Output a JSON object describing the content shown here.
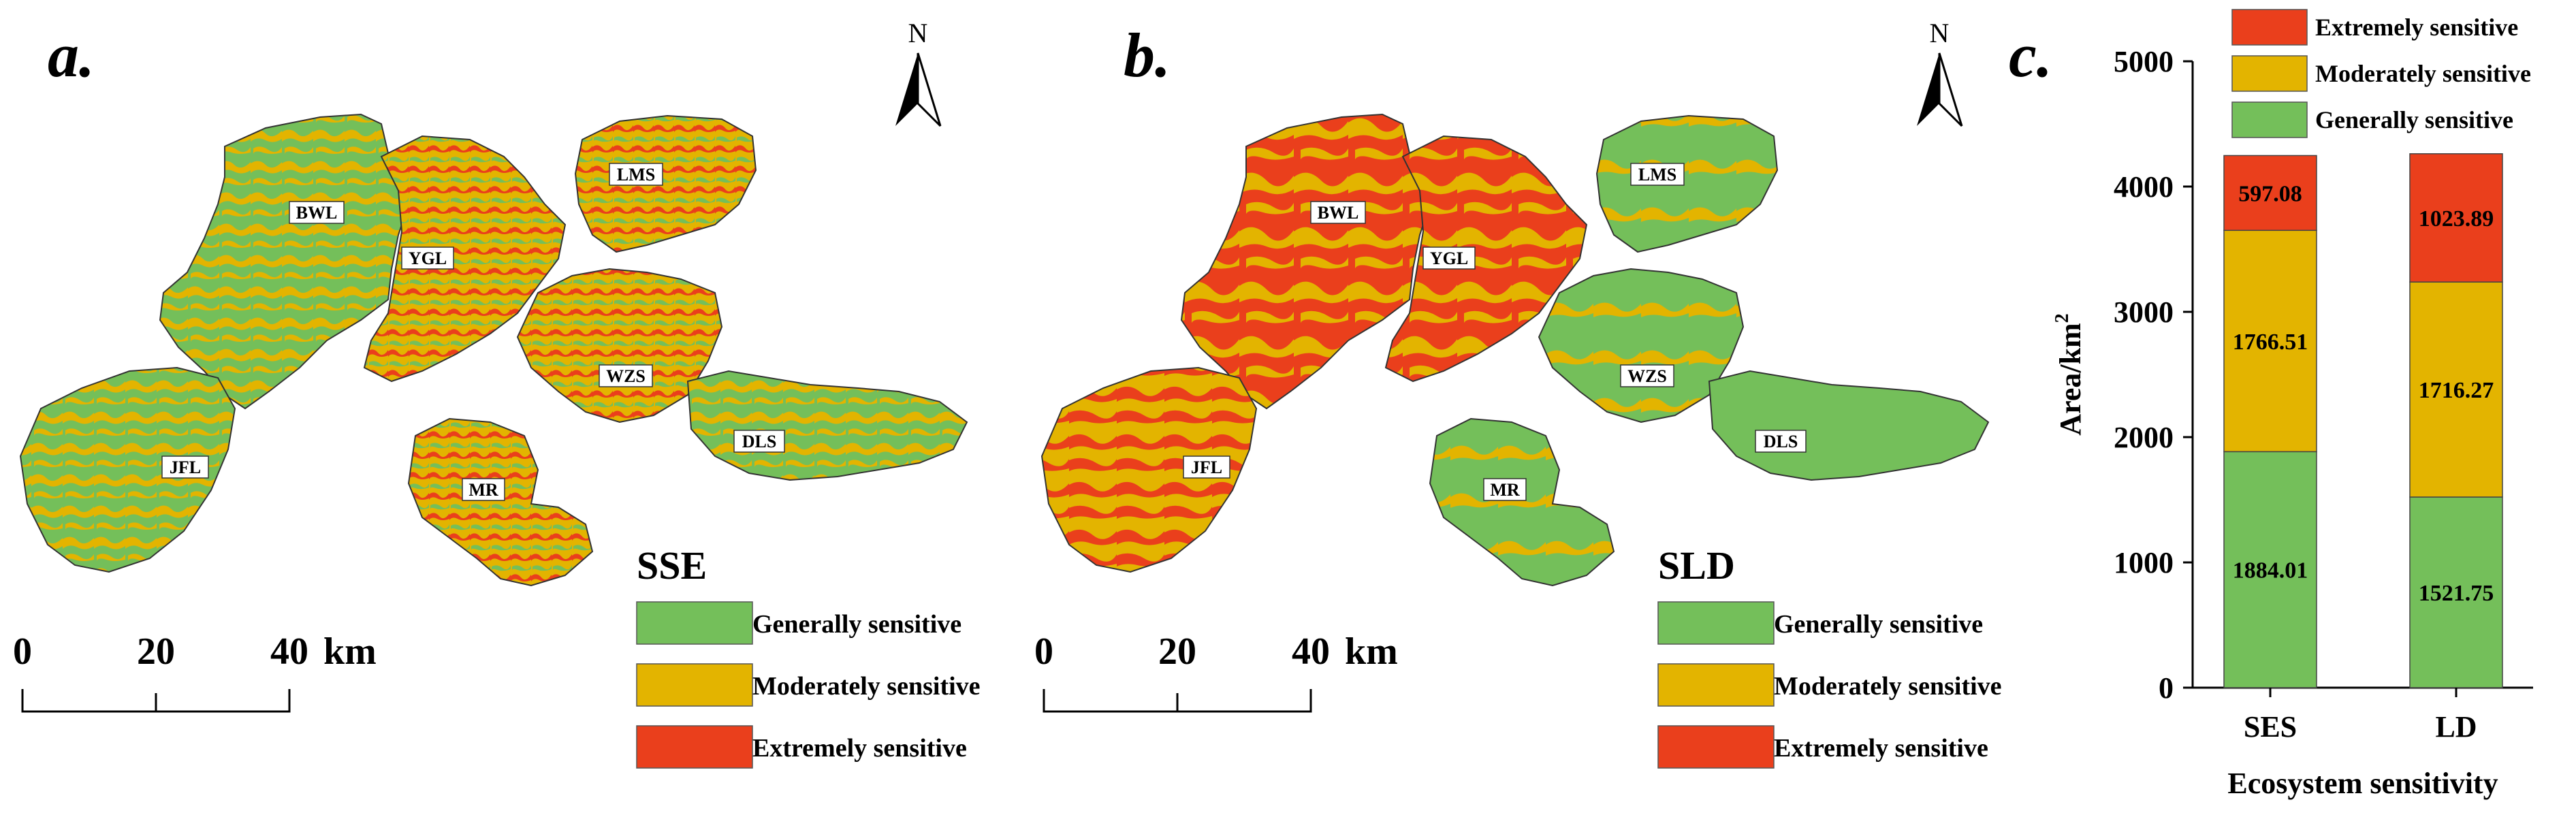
{
  "colors": {
    "generally": "#74bf5a",
    "moderately": "#e3b400",
    "extremely": "#ea3f1c",
    "text": "#000000",
    "label_box": "#ffffff"
  },
  "north_arrow_label": "N",
  "scale_bar": {
    "ticks": [
      "0",
      "20",
      "40"
    ],
    "unit": "km"
  },
  "sensitivity_classes": [
    "Generally sensitive",
    "Moderately sensitive",
    "Extremely sensitive"
  ],
  "regions": [
    "BWL",
    "YGL",
    "LMS",
    "WZS",
    "DLS",
    "JFL",
    "MR"
  ],
  "panels": [
    {
      "panel_label": "a.",
      "map_title": "SSE"
    },
    {
      "panel_label": "b.",
      "map_title": "SLD"
    }
  ],
  "chart_data": {
    "panel_label": "c.",
    "type": "bar",
    "stacked": true,
    "categories": [
      "SES",
      "LD"
    ],
    "series": [
      {
        "name": "Generally sensitive",
        "values": [
          1884.01,
          1521.75
        ],
        "labels": [
          "1884.01",
          "1521.75"
        ],
        "color": "#74bf5a"
      },
      {
        "name": "Moderately sensitive",
        "values": [
          1766.51,
          1716.27
        ],
        "labels": [
          "1766.51",
          "1716.27"
        ],
        "color": "#e3b400"
      },
      {
        "name": "Extremely sensitive",
        "values": [
          597.08,
          1023.89
        ],
        "labels": [
          "597.08",
          "1023.89"
        ],
        "color": "#ea3f1c"
      }
    ],
    "ylim": [
      0,
      5000
    ],
    "yticks": [
      "0",
      "1000",
      "2000",
      "3000",
      "4000",
      "5000"
    ],
    "ylabel": "Area/km",
    "ylabel_superscript": "2",
    "xlabel": "Ecosystem sensitivity",
    "legend_position": "top"
  }
}
